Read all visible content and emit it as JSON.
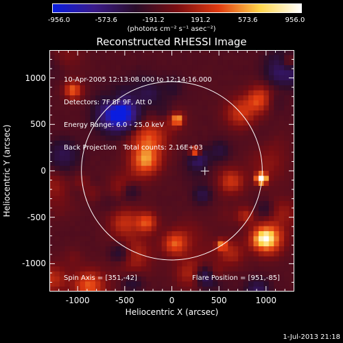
{
  "colorbar": {
    "ticks": [
      "-956.0",
      "-573.6",
      "-191.2",
      "191.2",
      "573.6",
      "956.0"
    ],
    "unit": "(photons cm⁻² s⁻¹ asec⁻²)",
    "colors": [
      "#0a1de0",
      "#3a1b8a",
      "#2a0d2a",
      "#7a0e12",
      "#e03a10",
      "#ffd54a",
      "#ffffff"
    ]
  },
  "chart_data": {
    "type": "heatmap",
    "title": "Reconstructed RHESSI Image",
    "xlabel": "Heliocentric X (arcsec)",
    "ylabel": "Heliocentric Y (arcsec)",
    "xlim": [
      -1300,
      1300
    ],
    "ylim": [
      -1300,
      1300
    ],
    "x_ticks": [
      "-1000",
      "-500",
      "0",
      "500",
      "1000"
    ],
    "y_ticks": [
      "1000",
      "500",
      "0",
      "-500",
      "-1000"
    ],
    "x_tick_values": [
      -1000,
      -500,
      0,
      500,
      1000
    ],
    "y_tick_values": [
      1000,
      500,
      0,
      -500,
      -1000
    ],
    "value_range": [
      -956.0,
      956.0
    ],
    "solar_limb": {
      "center": [
        0,
        0
      ],
      "radius": 960
    },
    "map_center_marker": [
      351,
      -2
    ],
    "bright_sources": [
      {
        "x": 951,
        "y": -85,
        "value": 956
      },
      {
        "x": 250,
        "y": 200,
        "value": 600
      },
      {
        "x": 60,
        "y": 550,
        "value": 400
      },
      {
        "x": 530,
        "y": -800,
        "value": 380
      }
    ]
  },
  "info": {
    "lines": [
      "10-Apr-2005 12:13:08.000 to 12:14:16.000",
      "Detectors: 7F 8F 9F, Att 0",
      "Energy Range: 6.0 - 25.0 keV",
      "Back Projection   Total counts: 2.16E+03"
    ],
    "spin_axis": "Spin Axis = [351,-42]",
    "flare_position": "Flare Position = [951,-85]"
  },
  "footer": {
    "date": "1-Jul-2013 21:18"
  }
}
